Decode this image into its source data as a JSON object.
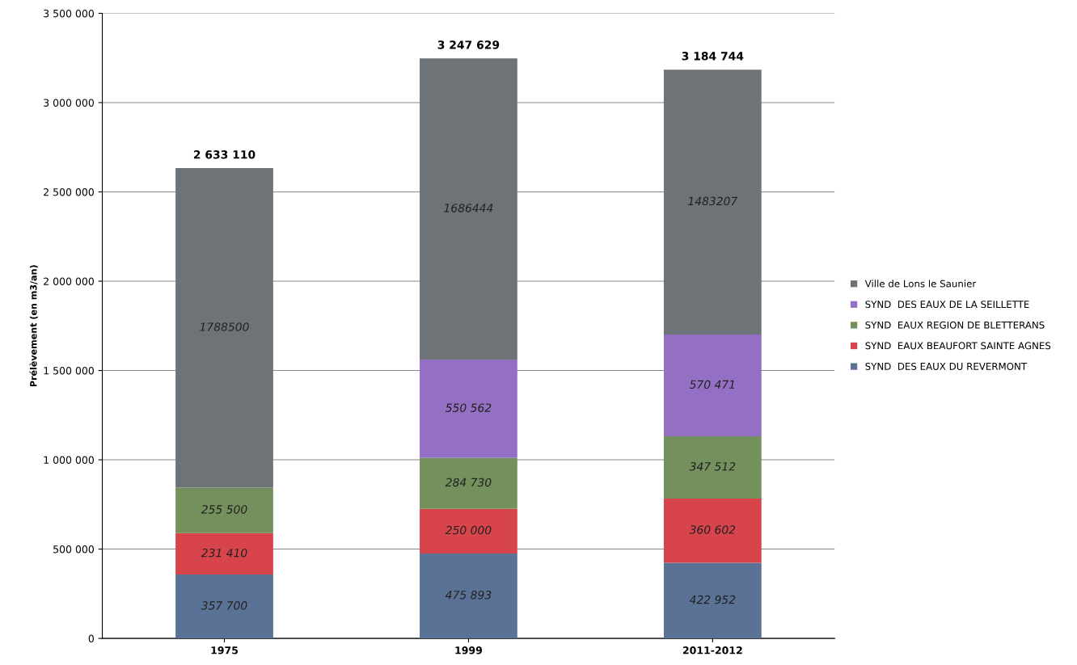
{
  "chart_data": {
    "type": "bar",
    "stacked": true,
    "ylabel": "Prélèvement (en m3/an)",
    "categories": [
      "1975",
      "1999",
      "2011-2012"
    ],
    "series": [
      {
        "name": "SYND  DES EAUX DU REVERMONT",
        "color": "#5a7296",
        "values": [
          357700,
          475893,
          422952
        ],
        "value_labels": [
          "357 700",
          "475 893",
          "422 952"
        ]
      },
      {
        "name": "SYND  EAUX BEAUFORT SAINTE AGNES",
        "color": "#d8444c",
        "values": [
          231410,
          250000,
          360602
        ],
        "value_labels": [
          "231 410",
          "250 000",
          "360 602"
        ]
      },
      {
        "name": "SYND  EAUX REGION DE BLETTERANS",
        "color": "#74905c",
        "values": [
          255500,
          284730,
          347512
        ],
        "value_labels": [
          "255 500",
          "284 730",
          "347 512"
        ]
      },
      {
        "name": "SYND  DES EAUX DE LA SEILLETTE",
        "color": "#9470c4",
        "values": [
          null,
          550562,
          570471
        ],
        "value_labels": [
          null,
          "550 562",
          "570 471"
        ]
      },
      {
        "name": "Ville de Lons le Saunier",
        "color": "#6e7378",
        "values": [
          1788500,
          1686444,
          1483207
        ],
        "value_labels": [
          "1788500",
          "1686444",
          "1483207"
        ]
      }
    ],
    "totals": [
      "2 633 110",
      "3 247 629",
      "3 184 744"
    ],
    "ylim": [
      0,
      3500000
    ],
    "yticks": [
      {
        "value": 0,
        "label": "0"
      },
      {
        "value": 500000,
        "label": "500 000"
      },
      {
        "value": 1000000,
        "label": "1 000 000"
      },
      {
        "value": 1500000,
        "label": "1 500 000"
      },
      {
        "value": 2000000,
        "label": "2 000 000"
      },
      {
        "value": 2500000,
        "label": "2 500 000"
      },
      {
        "value": 3000000,
        "label": "3 000 000"
      },
      {
        "value": 3500000,
        "label": "3 500 000"
      }
    ],
    "grid": "y",
    "legend": "right"
  }
}
